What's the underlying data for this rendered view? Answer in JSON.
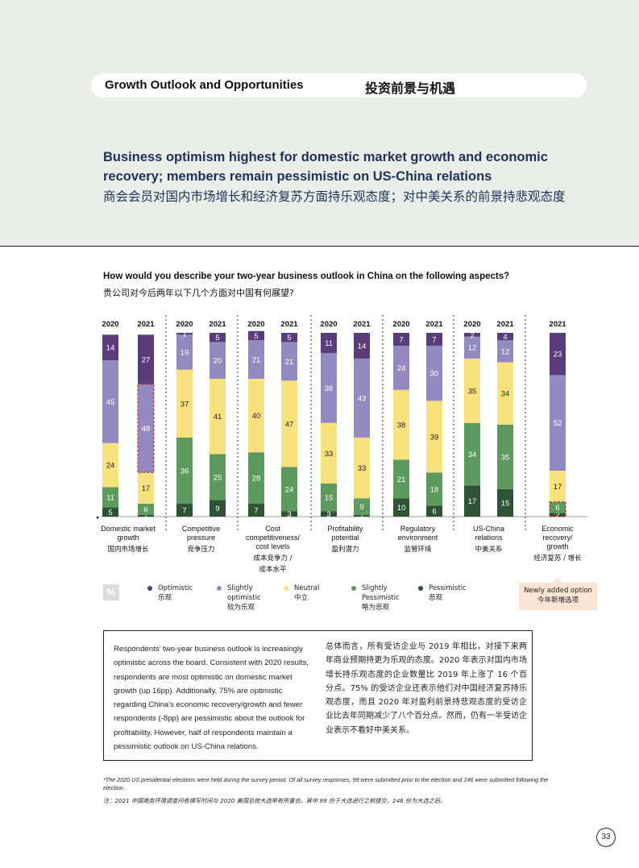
{
  "header": {
    "section_en": "Growth Outlook and Opportunities",
    "section_cn": "投资前景与机遇",
    "headline_en": "Business optimism highest for domestic market growth and economic recovery; members remain pessimistic on US-China relations",
    "headline_cn": "商会会员对国内市场增长和经济复苏方面持乐观态度；对中美关系的前景持悲观态度"
  },
  "question": {
    "en": "How would you describe your two-year business outlook in China on the following aspects?",
    "cn": "贵公司对今后两年以下几个方面对中国有何展望?"
  },
  "chart_data": {
    "type": "bar",
    "stacked": true,
    "unit": "%",
    "series_names": [
      "Pessimistic",
      "Slightly Pessimistic",
      "Neutral",
      "Slightly optimistic",
      "Optimistic"
    ],
    "colors": {
      "Pessimistic": "#2e5335",
      "Slightly Pessimistic": "#5d9a5d",
      "Neutral": "#f8e27e",
      "Slightly optimistic": "#9489c0",
      "Optimistic": "#5a3b7c"
    },
    "groups": [
      {
        "label_en": "Domestic market growth",
        "label_cn": "国内市场增长",
        "bars": [
          {
            "year": "2020",
            "values": [
              5,
              11,
              24,
              45,
              14
            ]
          },
          {
            "year": "2021",
            "values": [
              1,
              6,
              17,
              48,
              27
            ],
            "highlight": true
          }
        ]
      },
      {
        "label_en": "Competitive pressure",
        "label_cn": "竞争压力",
        "bars": [
          {
            "year": "2020",
            "values": [
              7,
              36,
              37,
              19,
              1
            ]
          },
          {
            "year": "2021",
            "values": [
              9,
              25,
              41,
              20,
              5
            ]
          }
        ]
      },
      {
        "label_en": "Cost competitiveness/ cost levels",
        "label_cn": "成本竞争力 / 成本水平",
        "bars": [
          {
            "year": "2020",
            "values": [
              7,
              28,
              40,
              21,
              5
            ]
          },
          {
            "year": "2021",
            "values": [
              3,
              24,
              47,
              21,
              5
            ]
          }
        ]
      },
      {
        "label_en": "Profitability potential",
        "label_cn": "盈利潜力",
        "bars": [
          {
            "year": "2020",
            "values": [
              3,
              15,
              33,
              38,
              11
            ]
          },
          {
            "year": "2021",
            "values": [
              1,
              9,
              33,
              43,
              14
            ]
          }
        ]
      },
      {
        "label_en": "Regulatory environment",
        "label_cn": "监管环境",
        "bars": [
          {
            "year": "2020",
            "values": [
              10,
              21,
              38,
              24,
              7
            ]
          },
          {
            "year": "2021",
            "values": [
              6,
              18,
              39,
              30,
              7
            ]
          }
        ]
      },
      {
        "label_en": "US-China relations",
        "label_cn": "中美关系",
        "bars": [
          {
            "year": "2020",
            "values": [
              17,
              34,
              35,
              12,
              2
            ]
          },
          {
            "year": "2021",
            "values": [
              15,
              35,
              34,
              12,
              4
            ]
          }
        ]
      },
      {
        "label_en": "Economic recovery/ growth",
        "label_cn": "经济复苏 / 增长",
        "bars": [
          {
            "year": "2021",
            "values": [
              2,
              6,
              17,
              52,
              23
            ],
            "highlight": true
          }
        ]
      }
    ],
    "ylim": [
      0,
      100
    ]
  },
  "legend": {
    "items": [
      {
        "en": "Optimistic",
        "cn": "乐观",
        "color": "#5a3b7c"
      },
      {
        "en": "Slightly optimistic",
        "cn": "较为乐观",
        "color": "#9489c0"
      },
      {
        "en": "Neutral",
        "cn": "中立",
        "color": "#f8e27e"
      },
      {
        "en": "Slightly Pessimistic",
        "cn": "略为悲观",
        "color": "#5d9a5d"
      },
      {
        "en": "Pessimistic",
        "cn": "悲观",
        "color": "#2e5335"
      }
    ],
    "pct_symbol": "%",
    "new_option_en": "Newly added option",
    "new_option_cn": "今年新增选项"
  },
  "summary": {
    "en": "Respondents' two-year business outlook is increasingly optimistic across the board. Consistent with 2020 results, respondents are most optimistic on domestic market growth (up 16pp). Additionally, 75% are optimistic regarding China's economic recovery/growth and fewer respondents (-8pp) are pessimistic about the outlook for profitability. However, half of respondents maintain a pessimistic outlook on US-China relations.",
    "cn": "总体而言，所有受访企业与 2019 年相比，对接下来两年商业预期持更为乐观的态度。2020 年表示对国内市场增长持乐观态度的企业数量比 2019 年上涨了 16 个百分点。75% 的受访企业还表示他们对中国经济复苏持乐观态度，而且 2020 年对盈利前景持悲观态度的受访企业比去年同期减少了八个百分点。然而，仍有一半受访企业表示不看好中美关系。"
  },
  "footnote": {
    "en": "*The 2020 US presidential elections were held during the survey period. Of all survey responses, 99 were submitted prior to the election and 246 were submitted following the election.",
    "cn": "注：2021 中国商务环境调查问卷填写时间与 2020 美国总统大选举有所重合。其中 99 份于大选进行之前提交，246 份为大选之后。"
  },
  "page_number": "33"
}
